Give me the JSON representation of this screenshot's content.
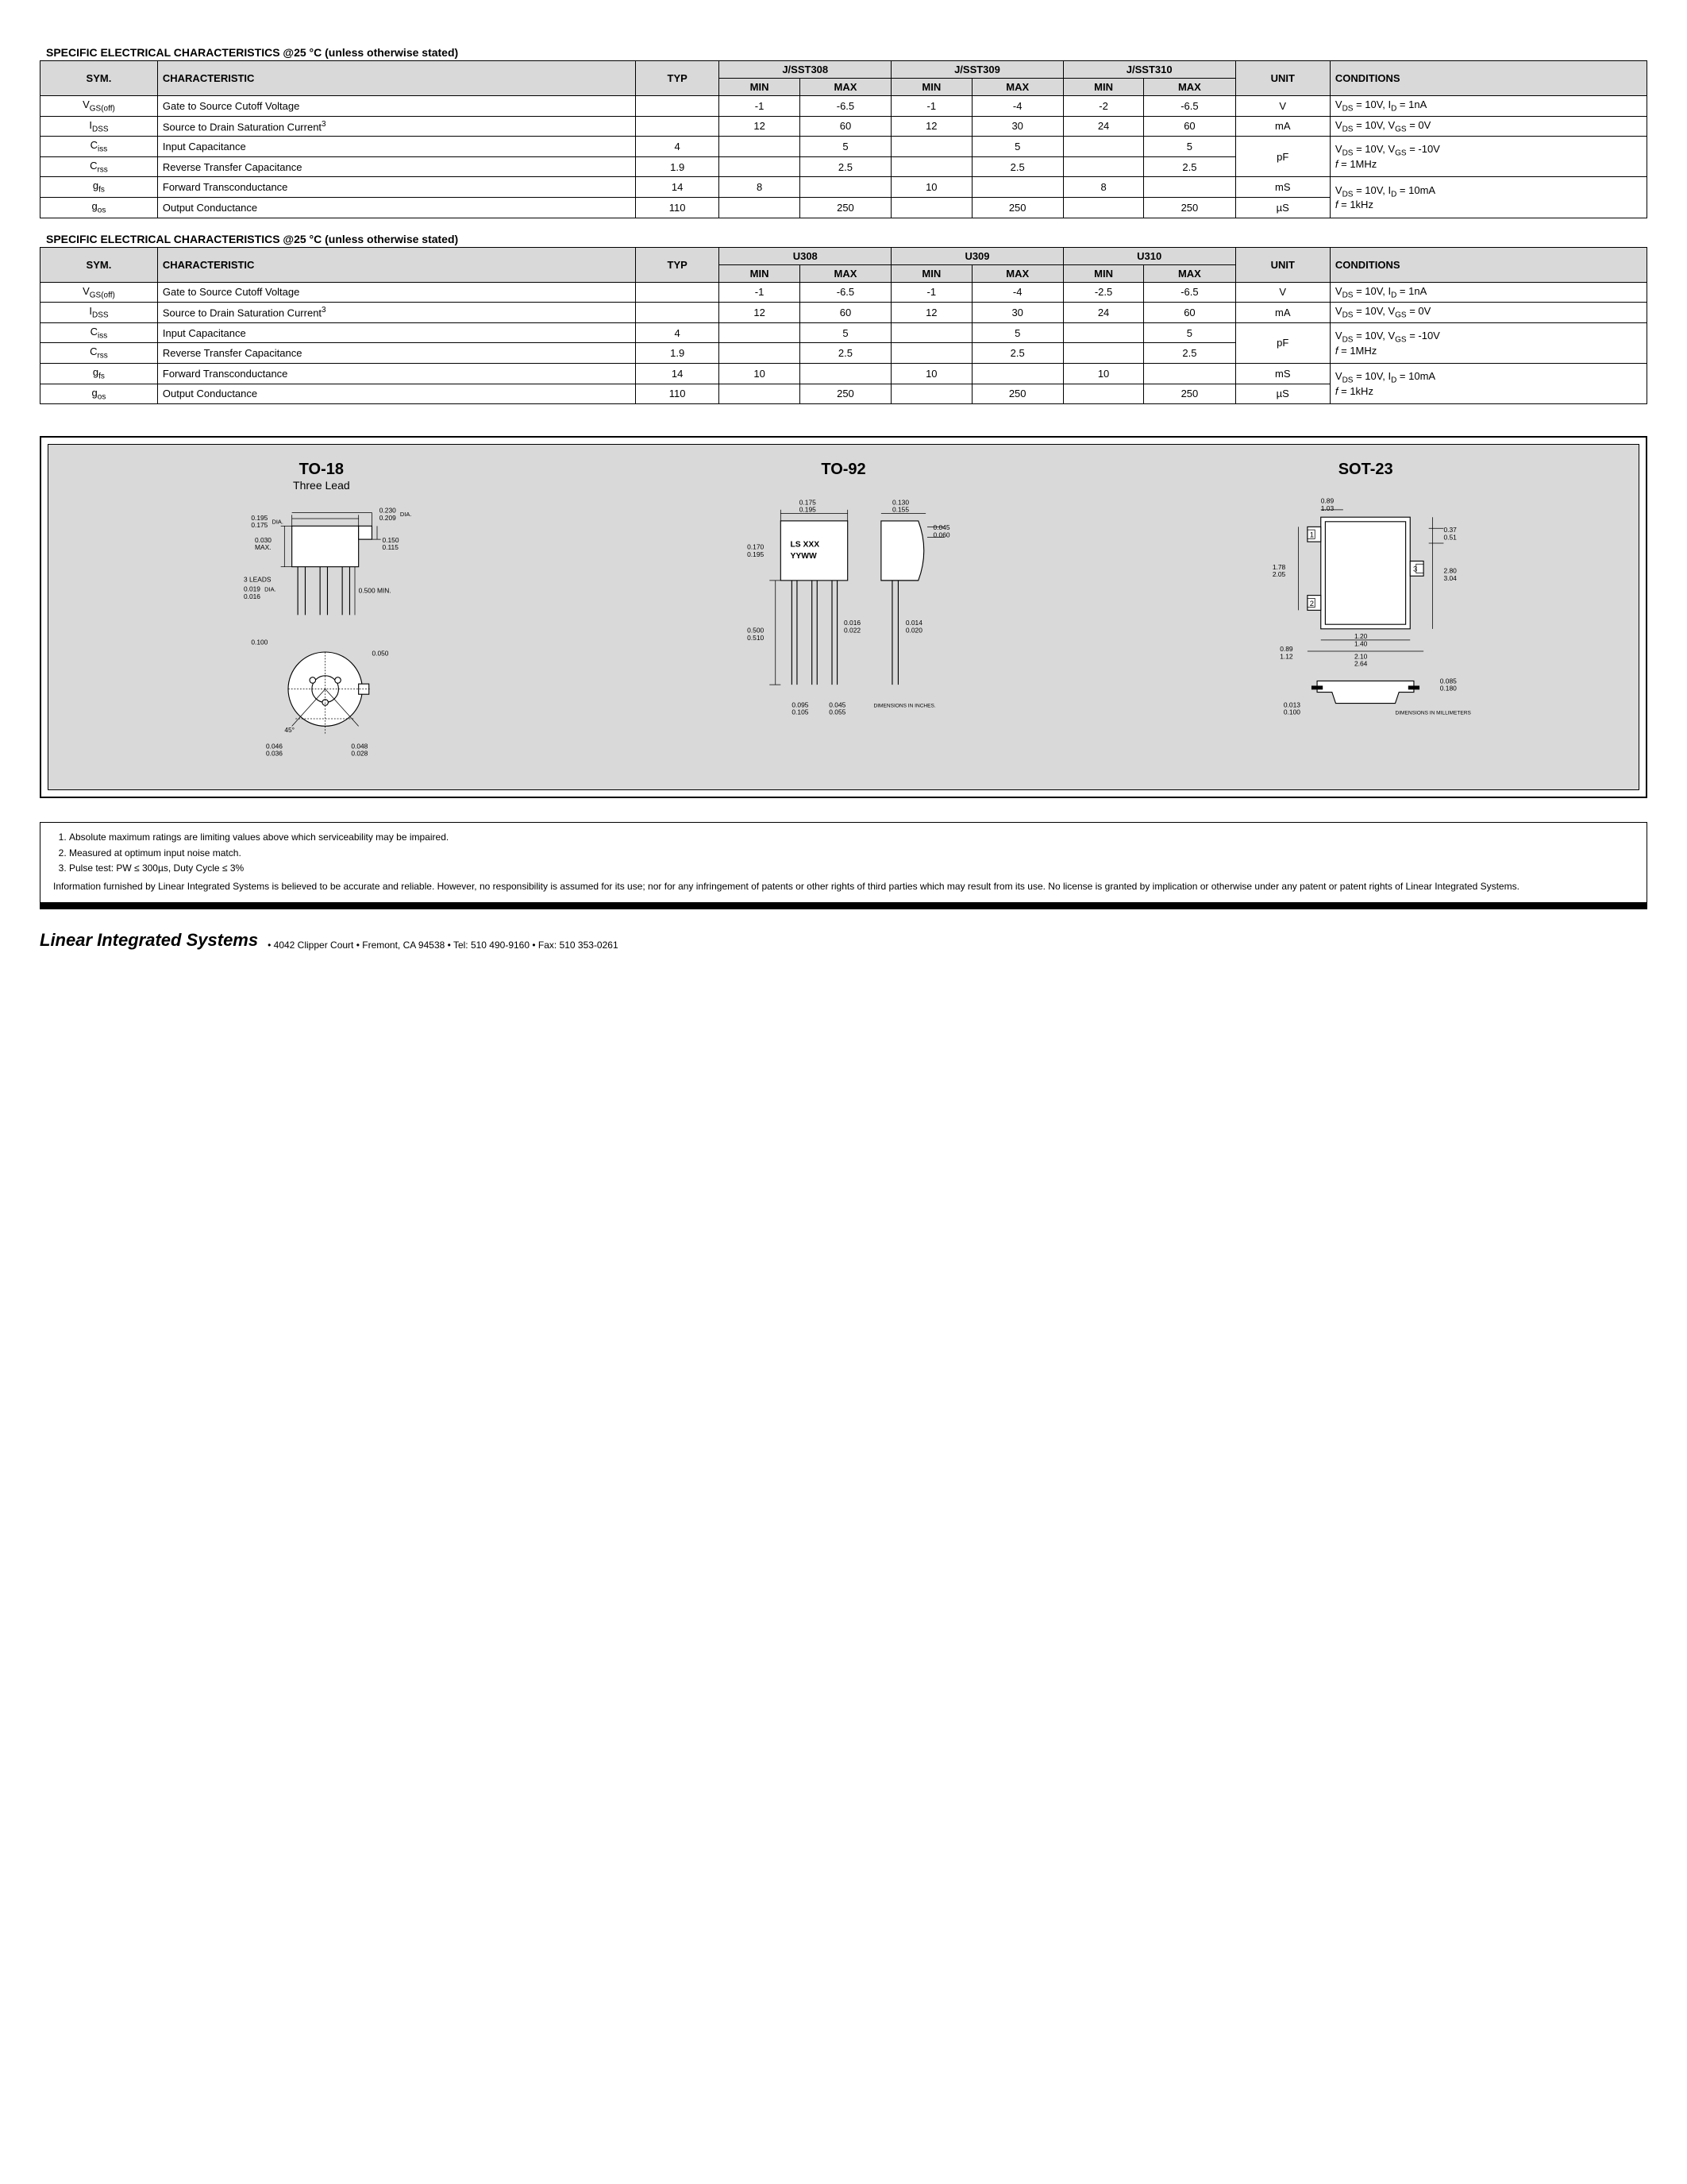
{
  "table1": {
    "title": "SPECIFIC ELECTRICAL CHARACTERISTICS @25 °C (unless otherwise stated)",
    "head": {
      "sym": "SYM.",
      "char": "CHARACTERISTIC",
      "typ": "TYP",
      "p1": "J/SST308",
      "p2": "J/SST309",
      "p3": "J/SST310",
      "min": "MIN",
      "max": "MAX",
      "unit": "UNIT",
      "cond": "CONDITIONS"
    },
    "rows": [
      {
        "sym": "V<sub>GS(off)</sub>",
        "char": "Gate to Source Cutoff Voltage",
        "typ": "",
        "min1": "-1",
        "max1": "-6.5",
        "min2": "-1",
        "max2": "-4",
        "min3": "-2",
        "max3": "-6.5",
        "unit": "V",
        "cond": "V<sub>DS</sub> = 10V, I<sub>D</sub> = 1nA"
      },
      {
        "sym": "I<sub>DSS</sub>",
        "char": "Source to Drain Saturation Current<sup>3</sup>",
        "typ": "",
        "min1": "12",
        "max1": "60",
        "min2": "12",
        "max2": "30",
        "min3": "24",
        "max3": "60",
        "unit": "mA",
        "cond": "V<sub>DS</sub> = 10V, V<sub>GS</sub> = 0V"
      },
      {
        "sym": "C<sub>iss</sub>",
        "char": "Input Capacitance",
        "typ": "4",
        "min1": "",
        "max1": "5",
        "min2": "",
        "max2": "5",
        "min3": "",
        "max3": "5",
        "unit": "pF",
        "cond": "V<sub>DS</sub> = 10V, V<sub>GS</sub> = -10V<br><span class='italic'>f</span> = 1MHz",
        "unitspan": 2
      },
      {
        "sym": "C<sub>rss</sub>",
        "char": "Reverse Transfer Capacitance",
        "typ": "1.9",
        "min1": "",
        "max1": "2.5",
        "min2": "",
        "max2": "2.5",
        "min3": "",
        "max3": "2.5"
      },
      {
        "sym": "g<sub>fs</sub>",
        "char": "Forward Transconductance",
        "typ": "14",
        "min1": "8",
        "max1": "",
        "min2": "10",
        "max2": "",
        "min3": "8",
        "max3": "",
        "unit": "mS",
        "cond": "V<sub>DS</sub> = 10V, I<sub>D</sub> = 10mA<br><span class='italic'>f</span> = 1kHz",
        "condspan": 2
      },
      {
        "sym": "g<sub>os</sub>",
        "char": "Output Conductance",
        "typ": "110",
        "min1": "",
        "max1": "250",
        "min2": "",
        "max2": "250",
        "min3": "",
        "max3": "250",
        "unit": "µS"
      }
    ]
  },
  "table2": {
    "title": "SPECIFIC ELECTRICAL CHARACTERISTICS @25 °C (unless otherwise stated)",
    "head": {
      "sym": "SYM.",
      "char": "CHARACTERISTIC",
      "typ": "TYP",
      "p1": "U308",
      "p2": "U309",
      "p3": "U310",
      "min": "MIN",
      "max": "MAX",
      "unit": "UNIT",
      "cond": "CONDITIONS"
    },
    "rows": [
      {
        "sym": "V<sub>GS(off)</sub>",
        "char": "Gate to Source Cutoff Voltage",
        "typ": "",
        "min1": "-1",
        "max1": "-6.5",
        "min2": "-1",
        "max2": "-4",
        "min3": "-2.5",
        "max3": "-6.5",
        "unit": "V",
        "cond": "V<sub>DS</sub> = 10V, I<sub>D</sub> = 1nA"
      },
      {
        "sym": "I<sub>DSS</sub>",
        "char": "Source to Drain Saturation Current<sup>3</sup>",
        "typ": "",
        "min1": "12",
        "max1": "60",
        "min2": "12",
        "max2": "30",
        "min3": "24",
        "max3": "60",
        "unit": "mA",
        "cond": "V<sub>DS</sub> = 10V, V<sub>GS</sub> = 0V"
      },
      {
        "sym": "C<sub>iss</sub>",
        "char": "Input Capacitance",
        "typ": "4",
        "min1": "",
        "max1": "5",
        "min2": "",
        "max2": "5",
        "min3": "",
        "max3": "5",
        "unit": "pF",
        "cond": "V<sub>DS</sub> = 10V, V<sub>GS</sub> = -10V<br><span class='italic'>f</span> = 1MHz",
        "unitspan": 2
      },
      {
        "sym": "C<sub>rss</sub>",
        "char": "Reverse Transfer Capacitance",
        "typ": "1.9",
        "min1": "",
        "max1": "2.5",
        "min2": "",
        "max2": "2.5",
        "min3": "",
        "max3": "2.5"
      },
      {
        "sym": "g<sub>fs</sub>",
        "char": "Forward Transconductance",
        "typ": "14",
        "min1": "10",
        "max1": "",
        "min2": "10",
        "max2": "",
        "min3": "10",
        "max3": "",
        "unit": "mS",
        "cond": "V<sub>DS</sub> = 10V, I<sub>D</sub> = 10mA<br><span class='italic'>f</span> = 1kHz",
        "condspan": 2
      },
      {
        "sym": "g<sub>os</sub>",
        "char": "Output Conductance",
        "typ": "110",
        "min1": "",
        "max1": "250",
        "min2": "",
        "max2": "250",
        "min3": "",
        "max3": "250",
        "unit": "µS"
      }
    ]
  },
  "packages": {
    "p1": {
      "title": "TO-18",
      "sub": "Three Lead"
    },
    "p2": {
      "title": "TO-92",
      "sub": ""
    },
    "p3": {
      "title": "SOT-23",
      "sub": ""
    },
    "to18": {
      "d1": "0.195",
      "d1b": "0.175",
      "d2": "0.230",
      "d2b": "0.209",
      "d3": "0.030",
      "d3b": "MAX.",
      "d4": "0.150",
      "d4b": "0.115",
      "leads": "3 LEADS",
      "d5": "0.019",
      "d5b": "0.016",
      "d6": "0.500 MIN.",
      "d7": "0.100",
      "d8": "0.050",
      "deg": "45°",
      "d9": "0.046",
      "d9b": "0.036",
      "d10": "0.048",
      "d10b": "0.028",
      "dia": "DIA."
    },
    "to92": {
      "t1": "0.175",
      "t1b": "0.195",
      "t2": "0.130",
      "t2b": "0.155",
      "t3": "0.170",
      "t3b": "0.195",
      "t4": "0.045",
      "t4b": "0.060",
      "mark1": "LS XXX",
      "mark2": "YYWW",
      "t5": "0.500",
      "t5b": "0.510",
      "t6": "0.016",
      "t6b": "0.022",
      "t7": "0.014",
      "t7b": "0.020",
      "t8": "0.095",
      "t8b": "0.105",
      "t9": "0.045",
      "t9b": "0.055",
      "note": "DIMENSIONS IN INCHES."
    },
    "sot23": {
      "s1": "0.89",
      "s1b": "1.03",
      "s2": "0.37",
      "s2b": "0.51",
      "s3": "1.78",
      "s3b": "2.05",
      "s4": "2.80",
      "s4b": "3.04",
      "s5": "1.20",
      "s5b": "1.40",
      "s6": "0.89",
      "s6b": "1.12",
      "s7": "2.10",
      "s7b": "2.64",
      "s8": "0.085",
      "s8b": "0.180",
      "s9": "0.013",
      "s9b": "0.100",
      "pin1": "1",
      "pin2": "2",
      "pin3": "3",
      "note": "DIMENSIONS IN MILLIMETERS"
    }
  },
  "notes": {
    "n1": "Absolute maximum ratings are limiting values above which serviceability may be impaired.",
    "n2": "Measured at optimum input noise match.",
    "n3": "Pulse test: PW ≤ 300µs, Duty Cycle ≤ 3%",
    "disclaimer": "Information furnished by Linear Integrated Systems is believed to be accurate and reliable.  However, no responsibility is assumed for its use; nor for any infringement of patents or other rights of third parties which may result from its use.  No license is granted by implication or otherwise under any patent or patent rights of Linear Integrated Systems."
  },
  "footer": {
    "company": "Linear Integrated Systems",
    "addr": "•  4042 Clipper Court  •  Fremont, CA 94538  •  Tel: 510 490-9160  •  Fax: 510 353-0261"
  }
}
